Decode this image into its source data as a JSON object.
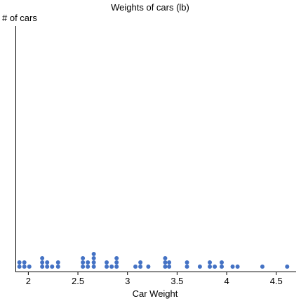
{
  "chart_data": {
    "type": "scatter",
    "title": "Weights of cars (lb)",
    "xlabel": "Car Weight",
    "ylabel": "# of cars",
    "xlim": [
      1.87,
      4.7
    ],
    "xticks": [
      "2",
      "2.5",
      "3",
      "3.5",
      "4",
      "4.5"
    ],
    "xtick_values": [
      2,
      2.5,
      3,
      3.5,
      4,
      4.5
    ],
    "grid": false,
    "marker_color": "#4472c4",
    "points": [
      {
        "x": 1.91,
        "y": 1
      },
      {
        "x": 1.91,
        "y": 2
      },
      {
        "x": 1.96,
        "y": 1
      },
      {
        "x": 1.96,
        "y": 2
      },
      {
        "x": 2.01,
        "y": 1
      },
      {
        "x": 2.14,
        "y": 1
      },
      {
        "x": 2.14,
        "y": 2
      },
      {
        "x": 2.14,
        "y": 3
      },
      {
        "x": 2.19,
        "y": 1
      },
      {
        "x": 2.19,
        "y": 2
      },
      {
        "x": 2.24,
        "y": 1
      },
      {
        "x": 2.3,
        "y": 1
      },
      {
        "x": 2.3,
        "y": 2
      },
      {
        "x": 2.55,
        "y": 1
      },
      {
        "x": 2.55,
        "y": 2
      },
      {
        "x": 2.55,
        "y": 3
      },
      {
        "x": 2.6,
        "y": 1
      },
      {
        "x": 2.6,
        "y": 2
      },
      {
        "x": 2.66,
        "y": 1
      },
      {
        "x": 2.66,
        "y": 2
      },
      {
        "x": 2.66,
        "y": 3
      },
      {
        "x": 2.66,
        "y": 4
      },
      {
        "x": 2.79,
        "y": 1
      },
      {
        "x": 2.79,
        "y": 2
      },
      {
        "x": 2.84,
        "y": 1
      },
      {
        "x": 2.89,
        "y": 1
      },
      {
        "x": 2.89,
        "y": 2
      },
      {
        "x": 2.89,
        "y": 3
      },
      {
        "x": 3.08,
        "y": 1
      },
      {
        "x": 3.13,
        "y": 1
      },
      {
        "x": 3.13,
        "y": 2
      },
      {
        "x": 3.21,
        "y": 1
      },
      {
        "x": 3.38,
        "y": 1
      },
      {
        "x": 3.38,
        "y": 2
      },
      {
        "x": 3.38,
        "y": 3
      },
      {
        "x": 3.42,
        "y": 1
      },
      {
        "x": 3.42,
        "y": 2
      },
      {
        "x": 3.6,
        "y": 1
      },
      {
        "x": 3.6,
        "y": 2
      },
      {
        "x": 3.73,
        "y": 1
      },
      {
        "x": 3.83,
        "y": 1
      },
      {
        "x": 3.83,
        "y": 2
      },
      {
        "x": 3.88,
        "y": 1
      },
      {
        "x": 3.95,
        "y": 1
      },
      {
        "x": 3.95,
        "y": 2
      },
      {
        "x": 4.06,
        "y": 1
      },
      {
        "x": 4.11,
        "y": 1
      },
      {
        "x": 4.36,
        "y": 1
      },
      {
        "x": 4.61,
        "y": 1
      }
    ]
  }
}
